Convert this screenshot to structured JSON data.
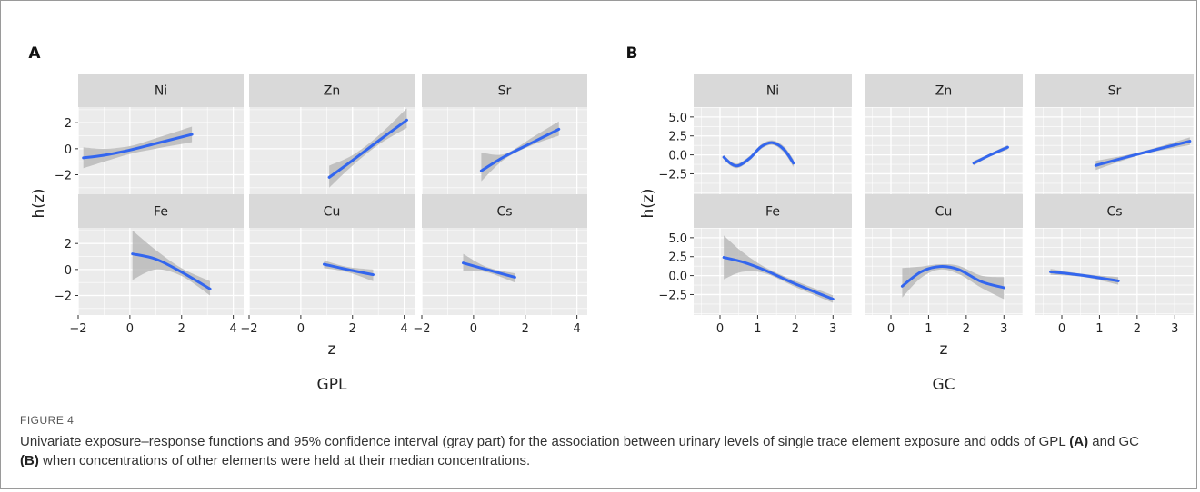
{
  "figure": {
    "caption_label": "FIGURE 4",
    "caption": {
      "part1": "Univariate exposure–response functions and 95% confidence interval (gray part) for the association between urinary levels of single trace element exposure and odds of GPL ",
      "ref_a": "(A)",
      "part2": " and GC ",
      "ref_b": "(B)",
      "part3": " when concentrations of other elements were held at their median concentrations."
    }
  },
  "chart_data": [
    {
      "type": "line",
      "panel_label": "A",
      "group_label": "GPL",
      "xlabel": "z",
      "ylabel": "h(z)",
      "xlim": [
        -2,
        4.4
      ],
      "ylim": [
        -3.5,
        3.2
      ],
      "xticks": [
        -2,
        0,
        2,
        4
      ],
      "xtick_labels": [
        "−2",
        "0",
        "2",
        "4"
      ],
      "yticks": [
        -2,
        0,
        2
      ],
      "ytick_labels": [
        "−2",
        "0",
        "2"
      ],
      "line_color": "#3366ee",
      "band_color": "#b3b3b3",
      "panel_bg": "#ebebeb",
      "strip_bg": "#d9d9d9",
      "facets": [
        {
          "name": "Ni",
          "x": [
            -1.8,
            -1.0,
            0.0,
            1.0,
            2.4
          ],
          "y": [
            -0.7,
            -0.5,
            -0.1,
            0.4,
            1.1
          ],
          "lower": [
            -1.5,
            -1.0,
            -0.4,
            0.0,
            0.5
          ],
          "upper": [
            0.1,
            0.0,
            0.2,
            0.8,
            1.7
          ]
        },
        {
          "name": "Zn",
          "x": [
            1.1,
            2.0,
            3.0,
            4.1
          ],
          "y": [
            -2.2,
            -0.9,
            0.6,
            2.2
          ],
          "lower": [
            -3.0,
            -1.3,
            0.3,
            1.6
          ],
          "upper": [
            -1.3,
            -0.5,
            1.0,
            3.1
          ]
        },
        {
          "name": "Sr",
          "x": [
            0.3,
            1.2,
            2.3,
            3.3
          ],
          "y": [
            -1.7,
            -0.6,
            0.5,
            1.5
          ],
          "lower": [
            -2.5,
            -0.8,
            0.3,
            1.0
          ],
          "upper": [
            -0.3,
            -0.4,
            0.9,
            2.1
          ]
        },
        {
          "name": "Fe",
          "x": [
            0.1,
            1.0,
            2.0,
            3.1
          ],
          "y": [
            1.2,
            0.8,
            -0.2,
            -1.5
          ],
          "lower": [
            -0.8,
            0.0,
            -0.5,
            -2.0
          ],
          "upper": [
            3.0,
            1.5,
            0.1,
            -0.9
          ]
        },
        {
          "name": "Cu",
          "x": [
            0.9,
            1.8,
            2.8
          ],
          "y": [
            0.4,
            0.0,
            -0.4
          ],
          "lower": [
            0.1,
            -0.2,
            -0.9
          ],
          "upper": [
            0.7,
            0.2,
            0.0
          ]
        },
        {
          "name": "Cs",
          "x": [
            -0.4,
            0.5,
            1.6
          ],
          "y": [
            0.5,
            0.0,
            -0.6
          ],
          "lower": [
            -0.1,
            -0.2,
            -1.0
          ],
          "upper": [
            1.2,
            0.2,
            -0.3
          ]
        }
      ]
    },
    {
      "type": "line",
      "panel_label": "B",
      "group_label": "GC",
      "xlabel": "z",
      "ylabel": "h(z)",
      "xlim": [
        -0.7,
        3.5
      ],
      "ylim": [
        -5.2,
        6.3
      ],
      "xticks": [
        0,
        1,
        2,
        3
      ],
      "xtick_labels": [
        "0",
        "1",
        "2",
        "3"
      ],
      "yticks": [
        -2.5,
        0.0,
        2.5,
        5.0
      ],
      "ytick_labels": [
        "−2.5",
        "0.0",
        "2.5",
        "5.0"
      ],
      "line_color": "#3366ee",
      "band_color": "#b3b3b3",
      "panel_bg": "#ebebeb",
      "strip_bg": "#d9d9d9",
      "facets": [
        {
          "name": "Ni",
          "x": [
            0.1,
            0.3,
            0.5,
            0.8,
            1.1,
            1.4,
            1.7,
            1.95
          ],
          "y": [
            -0.3,
            -1.2,
            -1.4,
            -0.4,
            1.1,
            1.6,
            0.7,
            -1.1
          ],
          "lower": [
            -0.6,
            -1.5,
            -1.7,
            -0.7,
            0.8,
            1.3,
            0.3,
            -1.6
          ],
          "upper": [
            0.0,
            -0.9,
            -1.1,
            -0.1,
            1.4,
            1.9,
            1.1,
            -0.6
          ]
        },
        {
          "name": "Zn",
          "x": [
            2.2,
            2.6,
            3.1
          ],
          "y": [
            -1.1,
            -0.1,
            1.0
          ],
          "lower": [
            -1.4,
            -0.3,
            0.7
          ],
          "upper": [
            -0.8,
            0.1,
            1.3
          ]
        },
        {
          "name": "Sr",
          "x": [
            0.9,
            2.1,
            3.4
          ],
          "y": [
            -1.4,
            0.2,
            1.8
          ],
          "lower": [
            -2.0,
            0.0,
            1.3
          ],
          "upper": [
            -0.8,
            0.4,
            2.3
          ]
        },
        {
          "name": "Fe",
          "x": [
            0.1,
            0.6,
            1.2,
            2.0,
            3.0
          ],
          "y": [
            2.4,
            1.8,
            0.7,
            -1.1,
            -3.1
          ],
          "lower": [
            -0.5,
            0.5,
            0.3,
            -1.5,
            -3.6
          ],
          "upper": [
            5.3,
            3.1,
            1.1,
            -0.7,
            -2.6
          ]
        },
        {
          "name": "Cu",
          "x": [
            0.3,
            0.8,
            1.3,
            1.8,
            2.4,
            3.0
          ],
          "y": [
            -1.4,
            0.5,
            1.2,
            0.8,
            -0.8,
            -1.6
          ],
          "lower": [
            -2.9,
            -0.3,
            0.8,
            0.2,
            -1.6,
            -3.1
          ],
          "upper": [
            1.0,
            1.2,
            1.5,
            1.3,
            0.0,
            -0.2
          ]
        },
        {
          "name": "Cs",
          "x": [
            -0.3,
            0.6,
            1.5
          ],
          "y": [
            0.5,
            0.0,
            -0.7
          ],
          "lower": [
            0.1,
            -0.2,
            -1.2
          ],
          "upper": [
            0.9,
            0.2,
            -0.2
          ]
        }
      ]
    }
  ]
}
